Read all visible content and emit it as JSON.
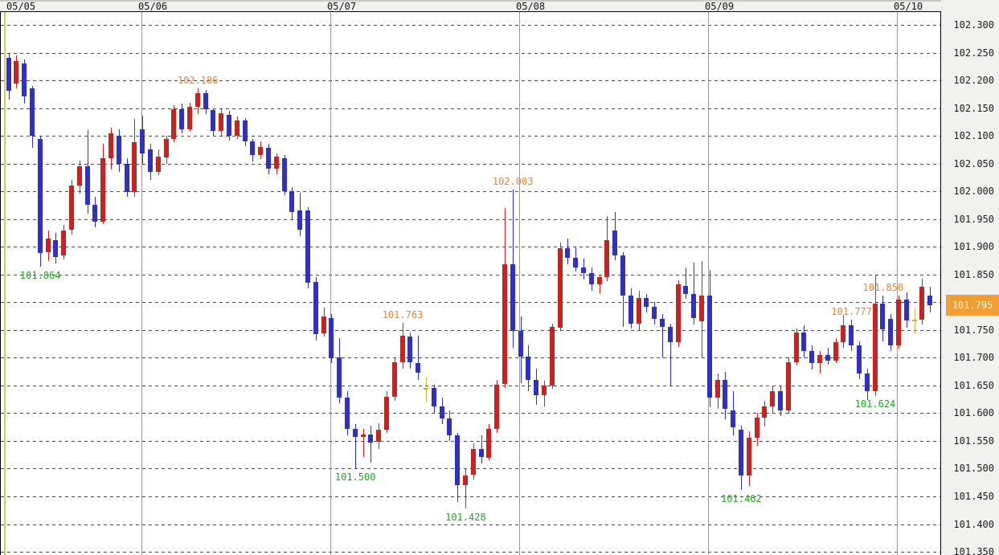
{
  "chart_data": {
    "type": "candlestick",
    "title": "",
    "xlabel": "",
    "ylabel": "",
    "grid": "dashed-horizontal, solid-vertical-day-boundaries",
    "legend_position": "none",
    "y_axis": {
      "min": 101.35,
      "max": 102.3,
      "step": 0.05,
      "labels": [
        "102.300",
        "102.250",
        "102.200",
        "102.150",
        "102.100",
        "102.050",
        "102.000",
        "101.950",
        "101.900",
        "101.850",
        "101.800",
        "101.750",
        "101.700",
        "101.650",
        "101.600",
        "101.550",
        "101.500",
        "101.450",
        "101.400",
        "101.350"
      ]
    },
    "dates": [
      "05/05",
      "05/06",
      "05/07",
      "05/08",
      "05/09",
      "05/10"
    ],
    "day_start_indices": [
      0,
      17,
      41,
      65,
      89,
      113
    ],
    "last_price": "101.795",
    "candles": [
      [
        102.24,
        102.248,
        102.165,
        102.18
      ],
      [
        102.195,
        102.245,
        102.185,
        102.235
      ],
      [
        102.23,
        102.238,
        102.158,
        102.17
      ],
      [
        102.185,
        102.19,
        102.078,
        102.1
      ],
      [
        102.095,
        102.1,
        101.864,
        101.89
      ],
      [
        101.89,
        101.93,
        101.875,
        101.915
      ],
      [
        101.912,
        101.925,
        101.87,
        101.882
      ],
      [
        101.885,
        101.94,
        101.878,
        101.93
      ],
      [
        101.93,
        102.02,
        101.922,
        102.01
      ],
      [
        102.01,
        102.055,
        101.995,
        102.045
      ],
      [
        102.045,
        102.11,
        101.96,
        101.975
      ],
      [
        101.975,
        101.99,
        101.935,
        101.945
      ],
      [
        101.945,
        102.085,
        101.94,
        102.06
      ],
      [
        102.06,
        102.115,
        102.04,
        102.105
      ],
      [
        102.1,
        102.112,
        102.035,
        102.05
      ],
      [
        102.05,
        102.06,
        101.99,
        102.0
      ],
      [
        101.998,
        102.13,
        101.99,
        102.088
      ],
      [
        102.112,
        102.137,
        102.05,
        102.068
      ],
      [
        102.075,
        102.085,
        102.02,
        102.035
      ],
      [
        102.035,
        102.075,
        102.028,
        102.062
      ],
      [
        102.062,
        102.1,
        102.05,
        102.095
      ],
      [
        102.095,
        102.155,
        102.088,
        102.148
      ],
      [
        102.148,
        102.158,
        102.105,
        102.112
      ],
      [
        102.112,
        102.16,
        102.108,
        102.152
      ],
      [
        102.152,
        102.186,
        102.14,
        102.177
      ],
      [
        102.177,
        102.182,
        102.138,
        102.148
      ],
      [
        102.146,
        102.15,
        102.1,
        102.108
      ],
      [
        102.108,
        102.148,
        102.1,
        102.14
      ],
      [
        102.138,
        102.145,
        102.092,
        102.1
      ],
      [
        102.1,
        102.135,
        102.095,
        102.128
      ],
      [
        102.128,
        102.132,
        102.082,
        102.09
      ],
      [
        102.09,
        102.095,
        102.055,
        102.066
      ],
      [
        102.066,
        102.09,
        102.058,
        102.08
      ],
      [
        102.078,
        102.085,
        102.03,
        102.04
      ],
      [
        102.04,
        102.068,
        102.03,
        102.062
      ],
      [
        102.06,
        102.065,
        101.992,
        102.0
      ],
      [
        102.0,
        102.008,
        101.95,
        101.962
      ],
      [
        101.965,
        101.998,
        101.92,
        101.93
      ],
      [
        101.966,
        101.972,
        101.826,
        101.836
      ],
      [
        101.836,
        101.845,
        101.73,
        101.742
      ],
      [
        101.745,
        101.79,
        101.738,
        101.775
      ],
      [
        101.772,
        101.778,
        101.69,
        101.7
      ],
      [
        101.7,
        101.735,
        101.618,
        101.628
      ],
      [
        101.628,
        101.64,
        101.56,
        101.572
      ],
      [
        101.572,
        101.58,
        101.5,
        101.558
      ],
      [
        101.558,
        101.572,
        101.522,
        101.562
      ],
      [
        101.562,
        101.578,
        101.512,
        101.548
      ],
      [
        101.548,
        101.582,
        101.535,
        101.57
      ],
      [
        101.57,
        101.64,
        101.565,
        101.63
      ],
      [
        101.63,
        101.7,
        101.622,
        101.692
      ],
      [
        101.692,
        101.763,
        101.68,
        101.74
      ],
      [
        101.738,
        101.745,
        101.68,
        101.692
      ],
      [
        101.69,
        101.74,
        101.66,
        101.672
      ],
      [
        101.645,
        101.665,
        101.62,
        101.645
      ],
      [
        101.645,
        101.652,
        101.6,
        101.612
      ],
      [
        101.612,
        101.628,
        101.58,
        101.59
      ],
      [
        101.59,
        101.605,
        101.55,
        101.56
      ],
      [
        101.56,
        101.565,
        101.44,
        101.47
      ],
      [
        101.47,
        101.5,
        101.428,
        101.488
      ],
      [
        101.488,
        101.545,
        101.48,
        101.535
      ],
      [
        101.535,
        101.56,
        101.51,
        101.52
      ],
      [
        101.52,
        101.58,
        101.515,
        101.572
      ],
      [
        101.572,
        101.66,
        101.565,
        101.652
      ],
      [
        101.652,
        101.97,
        101.645,
        101.868
      ],
      [
        101.868,
        102.003,
        101.718,
        101.748
      ],
      [
        101.748,
        101.775,
        101.655,
        101.702
      ],
      [
        101.702,
        101.722,
        101.64,
        101.66
      ],
      [
        101.66,
        101.68,
        101.615,
        101.632
      ],
      [
        101.632,
        101.658,
        101.612,
        101.65
      ],
      [
        101.65,
        101.762,
        101.645,
        101.755
      ],
      [
        101.755,
        101.908,
        101.748,
        101.898
      ],
      [
        101.898,
        101.915,
        101.868,
        101.88
      ],
      [
        101.88,
        101.9,
        101.855,
        101.862
      ],
      [
        101.862,
        101.878,
        101.84,
        101.852
      ],
      [
        101.852,
        101.862,
        101.82,
        101.832
      ],
      [
        101.832,
        101.85,
        101.815,
        101.845
      ],
      [
        101.845,
        101.955,
        101.838,
        101.912
      ],
      [
        101.93,
        101.962,
        101.875,
        101.885
      ],
      [
        101.885,
        101.89,
        101.755,
        101.812
      ],
      [
        101.812,
        101.825,
        101.752,
        101.762
      ],
      [
        101.762,
        101.82,
        101.748,
        101.808
      ],
      [
        101.808,
        101.815,
        101.782,
        101.792
      ],
      [
        101.792,
        101.8,
        101.76,
        101.77
      ],
      [
        101.77,
        101.778,
        101.7,
        101.755
      ],
      [
        101.755,
        101.762,
        101.65,
        101.728
      ],
      [
        101.728,
        101.84,
        101.72,
        101.832
      ],
      [
        101.83,
        101.862,
        101.805,
        101.815
      ],
      [
        101.815,
        101.872,
        101.76,
        101.772
      ],
      [
        101.765,
        101.875,
        101.7,
        101.812
      ],
      [
        101.812,
        101.858,
        101.61,
        101.628
      ],
      [
        101.628,
        101.672,
        101.608,
        101.66
      ],
      [
        101.66,
        101.675,
        101.59,
        101.608
      ],
      [
        101.605,
        101.64,
        101.56,
        101.575
      ],
      [
        101.57,
        101.578,
        101.462,
        101.488
      ],
      [
        101.488,
        101.568,
        101.47,
        101.556
      ],
      [
        101.556,
        101.6,
        101.54,
        101.592
      ],
      [
        101.592,
        101.622,
        101.575,
        101.612
      ],
      [
        101.612,
        101.648,
        101.6,
        101.64
      ],
      [
        101.64,
        101.65,
        101.595,
        101.605
      ],
      [
        101.605,
        101.7,
        101.598,
        101.692
      ],
      [
        101.692,
        101.752,
        101.685,
        101.745
      ],
      [
        101.745,
        101.758,
        101.7,
        101.712
      ],
      [
        101.712,
        101.722,
        101.678,
        101.69
      ],
      [
        101.69,
        101.712,
        101.672,
        101.705
      ],
      [
        101.705,
        101.718,
        101.688,
        101.695
      ],
      [
        101.695,
        101.735,
        101.69,
        101.728
      ],
      [
        101.728,
        101.777,
        101.718,
        101.758
      ],
      [
        101.758,
        101.768,
        101.712,
        101.722
      ],
      [
        101.722,
        101.73,
        101.662,
        101.672
      ],
      [
        101.672,
        101.68,
        101.624,
        101.64
      ],
      [
        101.64,
        101.85,
        101.632,
        101.798
      ],
      [
        101.798,
        101.812,
        101.73,
        101.752
      ],
      [
        101.77,
        101.778,
        101.712,
        101.722
      ],
      [
        101.722,
        101.812,
        101.716,
        101.805
      ],
      [
        101.805,
        101.818,
        101.755,
        101.768
      ],
      [
        101.768,
        101.79,
        101.742,
        101.768
      ],
      [
        101.768,
        101.842,
        101.76,
        101.828
      ],
      [
        101.812,
        101.828,
        101.782,
        101.795
      ]
    ],
    "annotations_high": [
      {
        "index": 24,
        "label": "102.186"
      },
      {
        "index": 64,
        "label": "102.003"
      },
      {
        "index": 50,
        "label": "101.763"
      },
      {
        "index": 111,
        "label": "101.850"
      },
      {
        "index": 107,
        "label": "101.777"
      }
    ],
    "annotations_low": [
      {
        "index": 4,
        "label": "101.864"
      },
      {
        "index": 44,
        "label": "101.500"
      },
      {
        "index": 58,
        "label": "101.428"
      },
      {
        "index": 93,
        "label": "101.462"
      },
      {
        "index": 110,
        "label": "101.624"
      }
    ]
  },
  "colors": {
    "up_candle": "#c62323",
    "down_candle": "#3131bf",
    "doji_candle": "#c9b53b",
    "swing_high_text": "#e6862c",
    "swing_low_text": "#21a621",
    "price_badge_bg": "#f29d31",
    "price_badge_text": "#ffffff",
    "grid_dash": "#4a4a4a",
    "day_line": "#9a9a9a",
    "session_line": "#d9cb5a"
  }
}
